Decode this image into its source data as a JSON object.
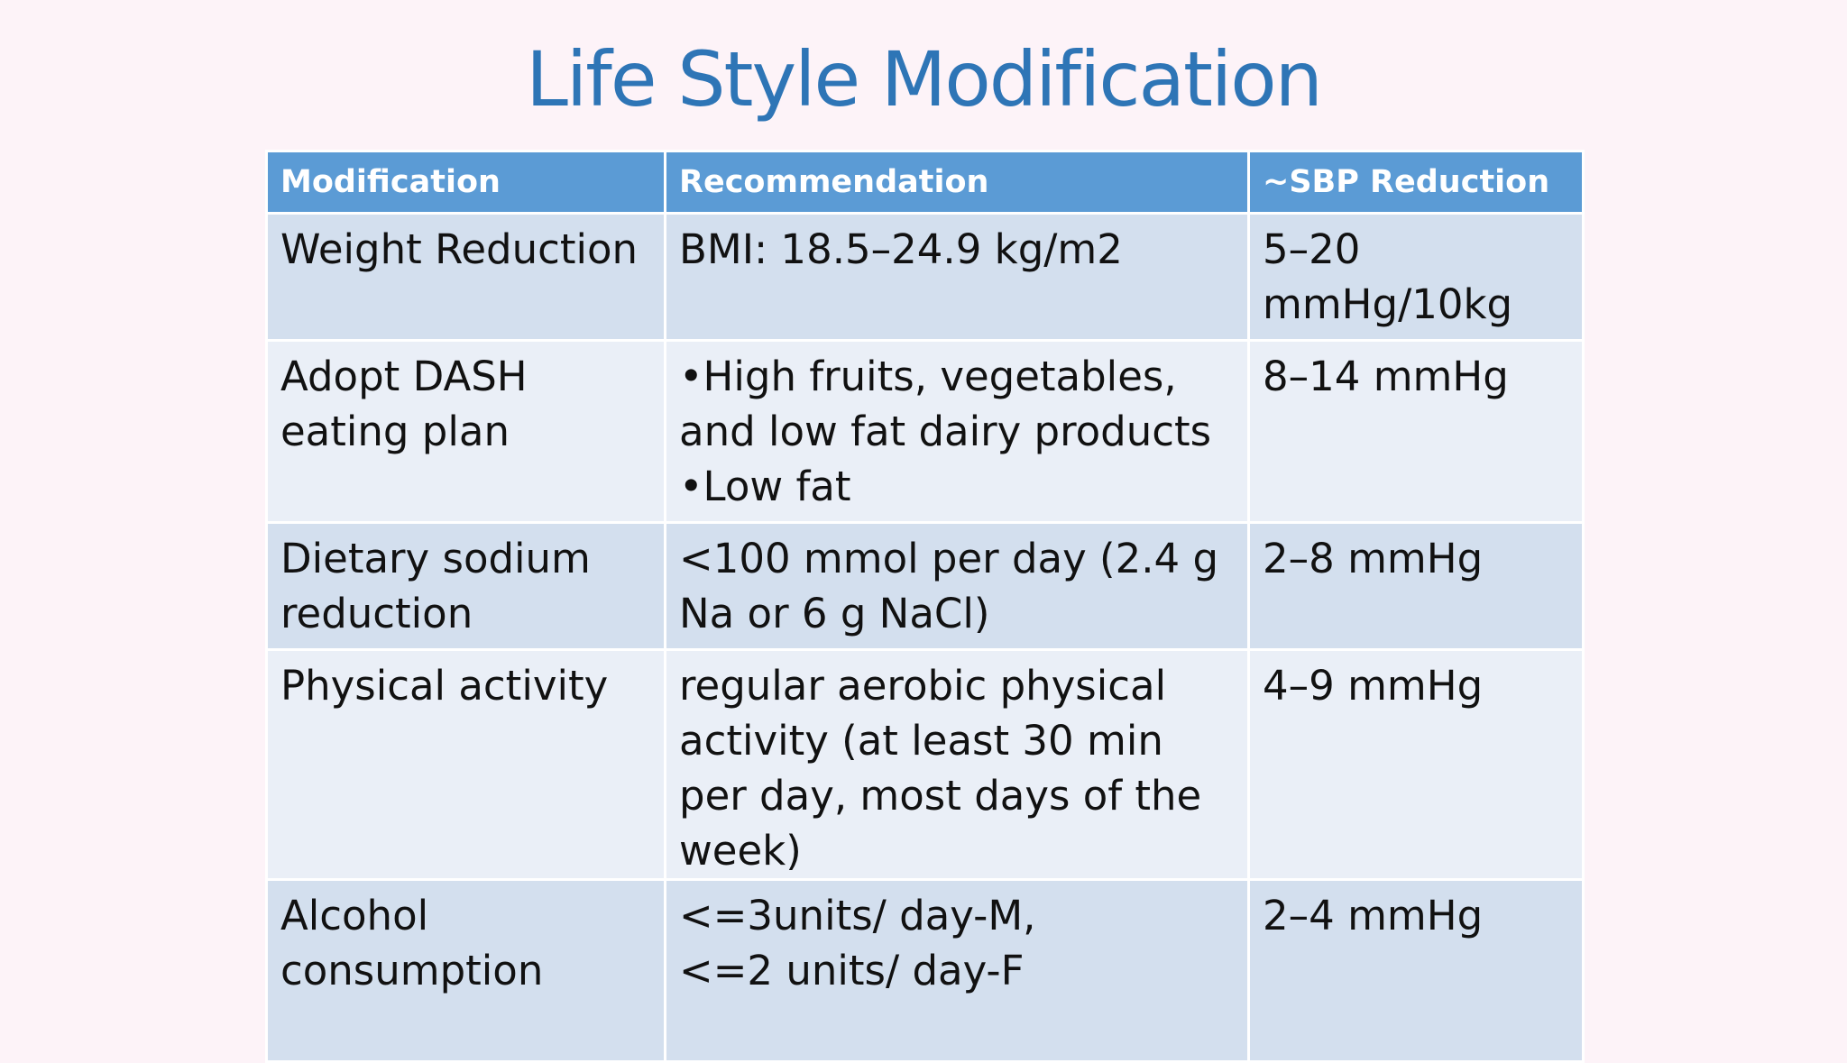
{
  "slide": {
    "title": "Life Style Modification"
  },
  "table": {
    "headers": [
      "Modification",
      "Recommendation",
      "~SBP Reduction"
    ],
    "rows": [
      {
        "modification": "Weight Reduction",
        "recommendation": [
          "BMI: 18.5–24.9 kg/m2"
        ],
        "sbp_reduction": "5–20 mmHg/10kg"
      },
      {
        "modification": "Adopt DASH eating plan",
        "recommendation": [
          "•High fruits,  vegetables, and low fat dairy products",
          "•Low fat"
        ],
        "sbp_reduction": "8–14 mmHg"
      },
      {
        "modification": "Dietary sodium reduction",
        "recommendation": [
          "<100 mmol per day (2.4 g Na or 6 g NaCl)"
        ],
        "sbp_reduction": "2–8 mmHg"
      },
      {
        "modification": "Physical activity",
        "recommendation": [
          "regular aerobic physical activity (at least 30 min per day, most days of the week)"
        ],
        "sbp_reduction": "4–9 mmHg"
      },
      {
        "modification": "Alcohol consumption",
        "recommendation": [
          "<=3units/ day-M,",
          "<=2 units/ day-F"
        ],
        "sbp_reduction": "2–4 mmHg"
      }
    ]
  }
}
